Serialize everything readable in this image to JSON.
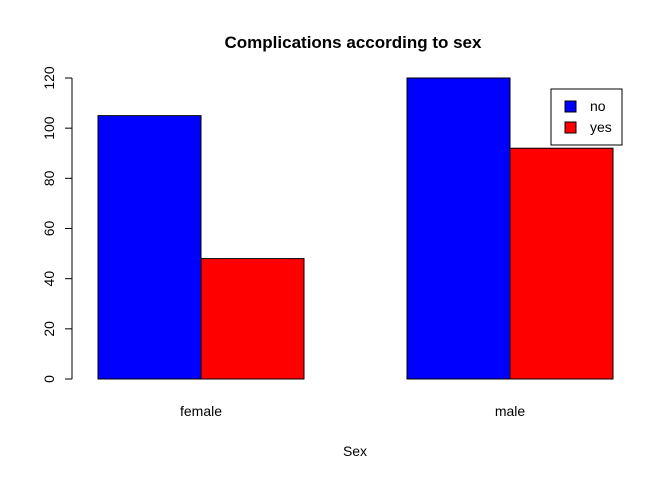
{
  "chart_data": {
    "type": "bar",
    "title": "Complications according to sex",
    "xlabel": "Sex",
    "ylabel": "",
    "categories": [
      "female",
      "male"
    ],
    "series": [
      {
        "name": "no",
        "color": "#0000ff",
        "values": [
          105,
          120
        ]
      },
      {
        "name": "yes",
        "color": "#ff0000",
        "values": [
          48,
          92
        ]
      }
    ],
    "ylim": [
      0,
      120
    ],
    "yticks": [
      0,
      20,
      40,
      60,
      80,
      100,
      120
    ],
    "grid": false,
    "legend_position": "top-right"
  }
}
